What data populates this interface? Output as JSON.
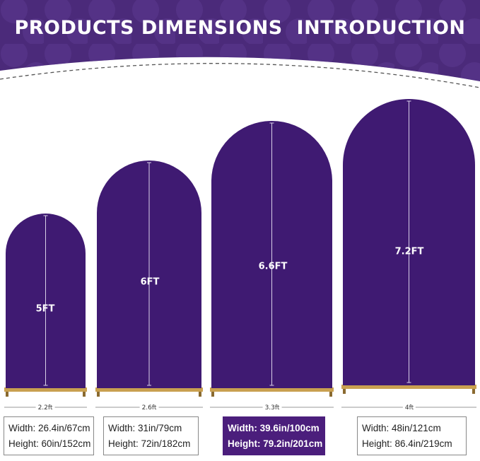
{
  "header": {
    "title": "PRODUCTS DIMENSIONS  INTRODUCTION",
    "bg_color": "#4b2a7a"
  },
  "arch_color": "#3f1a72",
  "stand_color": "#c9a050",
  "products": [
    {
      "height_label": "5FT",
      "width_label": "2.2ft",
      "width_spec": "Width: 26.4in/67cm",
      "height_spec": "Height: 60in/152cm",
      "highlighted": false
    },
    {
      "height_label": "6FT",
      "width_label": "2.6ft",
      "width_spec": "Width: 31in/79cm",
      "height_spec": "Height: 72in/182cm",
      "highlighted": false
    },
    {
      "height_label": "6.6FT",
      "width_label": "3.3ft",
      "width_spec": "Width: 39.6in/100cm",
      "height_spec": "Height: 79.2in/201cm",
      "highlighted": true
    },
    {
      "height_label": "7.2FT",
      "width_label": "4ft",
      "width_spec": "Width: 48in/121cm",
      "height_spec": "Height: 86.4in/219cm",
      "highlighted": false
    }
  ]
}
